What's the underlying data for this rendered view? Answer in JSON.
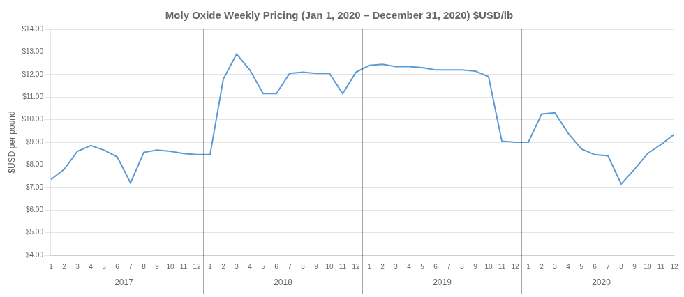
{
  "chart_data": {
    "type": "line",
    "title": "Moly Oxide Weekly Pricing (Jan 1, 2020 – December 31, 2020) $USD/lb",
    "ylabel": "$USD per pound",
    "categories": [
      "1",
      "2",
      "3",
      "4",
      "5",
      "6",
      "7",
      "8",
      "9",
      "10",
      "11",
      "12",
      "1",
      "2",
      "3",
      "4",
      "5",
      "6",
      "7",
      "8",
      "9",
      "10",
      "11",
      "12",
      "1",
      "2",
      "3",
      "4",
      "5",
      "6",
      "7",
      "8",
      "9",
      "10",
      "11",
      "12",
      "1",
      "2",
      "3",
      "4",
      "5",
      "6",
      "7",
      "8",
      "9",
      "10",
      "11",
      "12"
    ],
    "annotations": [
      "2017",
      "2018",
      "2019",
      "2020"
    ],
    "values": [
      7.35,
      7.8,
      8.6,
      8.85,
      8.65,
      8.35,
      7.2,
      8.55,
      8.65,
      8.6,
      8.5,
      8.45,
      8.45,
      11.8,
      12.9,
      12.2,
      11.15,
      11.15,
      12.05,
      12.1,
      12.05,
      12.05,
      11.15,
      12.1,
      12.4,
      12.45,
      12.35,
      12.35,
      12.3,
      12.2,
      12.2,
      12.2,
      12.15,
      11.9,
      9.05,
      9.0,
      9.0,
      10.25,
      10.3,
      9.4,
      8.7,
      8.45,
      8.4,
      7.15,
      7.8,
      8.5,
      8.9,
      9.35
    ],
    "color": "#5B9BD5",
    "ylim": [
      4.0,
      14.0
    ],
    "yticks": [
      {
        "value": 4.0,
        "label": "$4.00"
      },
      {
        "value": 5.0,
        "label": "$5.00"
      },
      {
        "value": 6.0,
        "label": "$6.00"
      },
      {
        "value": 7.0,
        "label": "$7.00"
      },
      {
        "value": 8.0,
        "label": "$8.00"
      },
      {
        "value": 9.0,
        "label": "$9.00"
      },
      {
        "value": 10.0,
        "label": "$10.00"
      },
      {
        "value": 11.0,
        "label": "$11.00"
      },
      {
        "value": 12.0,
        "label": "$12.00"
      },
      {
        "value": 13.0,
        "label": "$13.00"
      },
      {
        "value": 14.0,
        "label": "$14.00"
      }
    ],
    "grid": true
  }
}
